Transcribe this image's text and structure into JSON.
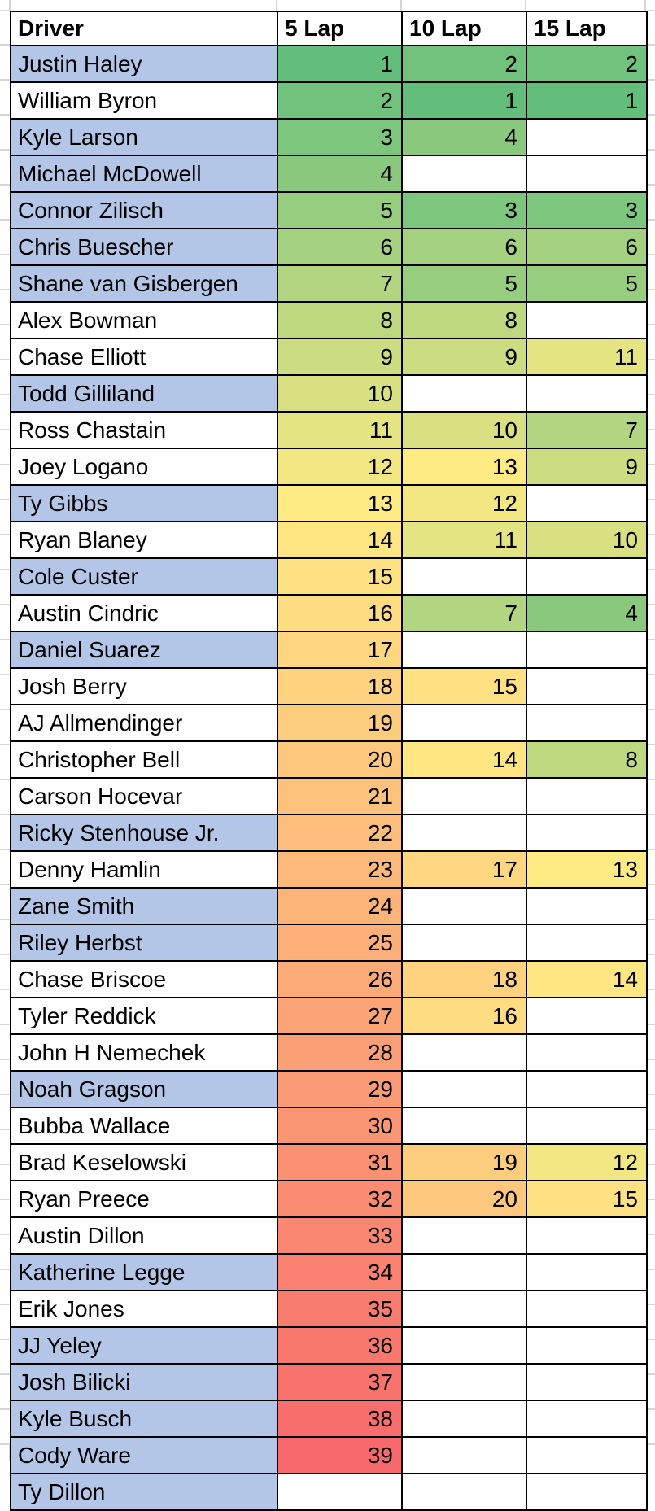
{
  "table": {
    "columns": [
      {
        "label": "Driver"
      },
      {
        "label": "5 Lap"
      },
      {
        "label": "10 Lap"
      },
      {
        "label": "15 Lap"
      }
    ],
    "rows": [
      {
        "driver": "Justin Haley",
        "shaded": true,
        "lap5": 1,
        "lap10": 2,
        "lap15": 2
      },
      {
        "driver": "William Byron",
        "shaded": false,
        "lap5": 2,
        "lap10": 1,
        "lap15": 1
      },
      {
        "driver": "Kyle Larson",
        "shaded": true,
        "lap5": 3,
        "lap10": 4,
        "lap15": null
      },
      {
        "driver": "Michael McDowell",
        "shaded": true,
        "lap5": 4,
        "lap10": null,
        "lap15": null
      },
      {
        "driver": "Connor Zilisch",
        "shaded": true,
        "lap5": 5,
        "lap10": 3,
        "lap15": 3
      },
      {
        "driver": "Chris Buescher",
        "shaded": true,
        "lap5": 6,
        "lap10": 6,
        "lap15": 6
      },
      {
        "driver": "Shane van Gisbergen",
        "shaded": true,
        "lap5": 7,
        "lap10": 5,
        "lap15": 5
      },
      {
        "driver": "Alex Bowman",
        "shaded": false,
        "lap5": 8,
        "lap10": 8,
        "lap15": null
      },
      {
        "driver": "Chase Elliott",
        "shaded": false,
        "lap5": 9,
        "lap10": 9,
        "lap15": 11
      },
      {
        "driver": "Todd Gilliland",
        "shaded": true,
        "lap5": 10,
        "lap10": null,
        "lap15": null
      },
      {
        "driver": "Ross Chastain",
        "shaded": false,
        "lap5": 11,
        "lap10": 10,
        "lap15": 7
      },
      {
        "driver": "Joey Logano",
        "shaded": false,
        "lap5": 12,
        "lap10": 13,
        "lap15": 9
      },
      {
        "driver": "Ty Gibbs",
        "shaded": true,
        "lap5": 13,
        "lap10": 12,
        "lap15": null
      },
      {
        "driver": "Ryan Blaney",
        "shaded": false,
        "lap5": 14,
        "lap10": 11,
        "lap15": 10
      },
      {
        "driver": "Cole Custer",
        "shaded": true,
        "lap5": 15,
        "lap10": null,
        "lap15": null
      },
      {
        "driver": "Austin Cindric",
        "shaded": false,
        "lap5": 16,
        "lap10": 7,
        "lap15": 4
      },
      {
        "driver": "Daniel Suarez",
        "shaded": true,
        "lap5": 17,
        "lap10": null,
        "lap15": null
      },
      {
        "driver": "Josh Berry",
        "shaded": false,
        "lap5": 18,
        "lap10": 15,
        "lap15": null
      },
      {
        "driver": "AJ Allmendinger",
        "shaded": false,
        "lap5": 19,
        "lap10": null,
        "lap15": null
      },
      {
        "driver": "Christopher Bell",
        "shaded": false,
        "lap5": 20,
        "lap10": 14,
        "lap15": 8
      },
      {
        "driver": "Carson Hocevar",
        "shaded": false,
        "lap5": 21,
        "lap10": null,
        "lap15": null
      },
      {
        "driver": "Ricky Stenhouse Jr.",
        "shaded": true,
        "lap5": 22,
        "lap10": null,
        "lap15": null
      },
      {
        "driver": "Denny Hamlin",
        "shaded": false,
        "lap5": 23,
        "lap10": 17,
        "lap15": 13
      },
      {
        "driver": "Zane Smith",
        "shaded": true,
        "lap5": 24,
        "lap10": null,
        "lap15": null
      },
      {
        "driver": "Riley Herbst",
        "shaded": true,
        "lap5": 25,
        "lap10": null,
        "lap15": null
      },
      {
        "driver": "Chase Briscoe",
        "shaded": false,
        "lap5": 26,
        "lap10": 18,
        "lap15": 14
      },
      {
        "driver": "Tyler Reddick",
        "shaded": false,
        "lap5": 27,
        "lap10": 16,
        "lap15": null
      },
      {
        "driver": "John H Nemechek",
        "shaded": false,
        "lap5": 28,
        "lap10": null,
        "lap15": null
      },
      {
        "driver": "Noah Gragson",
        "shaded": true,
        "lap5": 29,
        "lap10": null,
        "lap15": null
      },
      {
        "driver": "Bubba Wallace",
        "shaded": false,
        "lap5": 30,
        "lap10": null,
        "lap15": null
      },
      {
        "driver": "Brad Keselowski",
        "shaded": false,
        "lap5": 31,
        "lap10": 19,
        "lap15": 12
      },
      {
        "driver": "Ryan Preece",
        "shaded": false,
        "lap5": 32,
        "lap10": 20,
        "lap15": 15
      },
      {
        "driver": "Austin Dillon",
        "shaded": false,
        "lap5": 33,
        "lap10": null,
        "lap15": null
      },
      {
        "driver": "Katherine Legge",
        "shaded": true,
        "lap5": 34,
        "lap10": null,
        "lap15": null
      },
      {
        "driver": "Erik Jones",
        "shaded": false,
        "lap5": 35,
        "lap10": null,
        "lap15": null
      },
      {
        "driver": "JJ Yeley",
        "shaded": true,
        "lap5": 36,
        "lap10": null,
        "lap15": null
      },
      {
        "driver": "Josh Bilicki",
        "shaded": true,
        "lap5": 37,
        "lap10": null,
        "lap15": null
      },
      {
        "driver": "Kyle Busch",
        "shaded": true,
        "lap5": 38,
        "lap10": null,
        "lap15": null
      },
      {
        "driver": "Cody Ware",
        "shaded": true,
        "lap5": 39,
        "lap10": null,
        "lap15": null
      },
      {
        "driver": "Ty Dillon",
        "shaded": true,
        "lap5": null,
        "lap10": null,
        "lap15": null
      }
    ]
  },
  "colors": {
    "row_shade": "#B4C6E7",
    "cell_border": "#000000",
    "gridline": "#D6D6D6",
    "scale_min_value": 1,
    "scale_mid_value": 13,
    "scale_max_value": 39,
    "scale_min_color": "#63BE7B",
    "scale_mid_color": "#FFEB84",
    "scale_max_color": "#F8696B"
  }
}
